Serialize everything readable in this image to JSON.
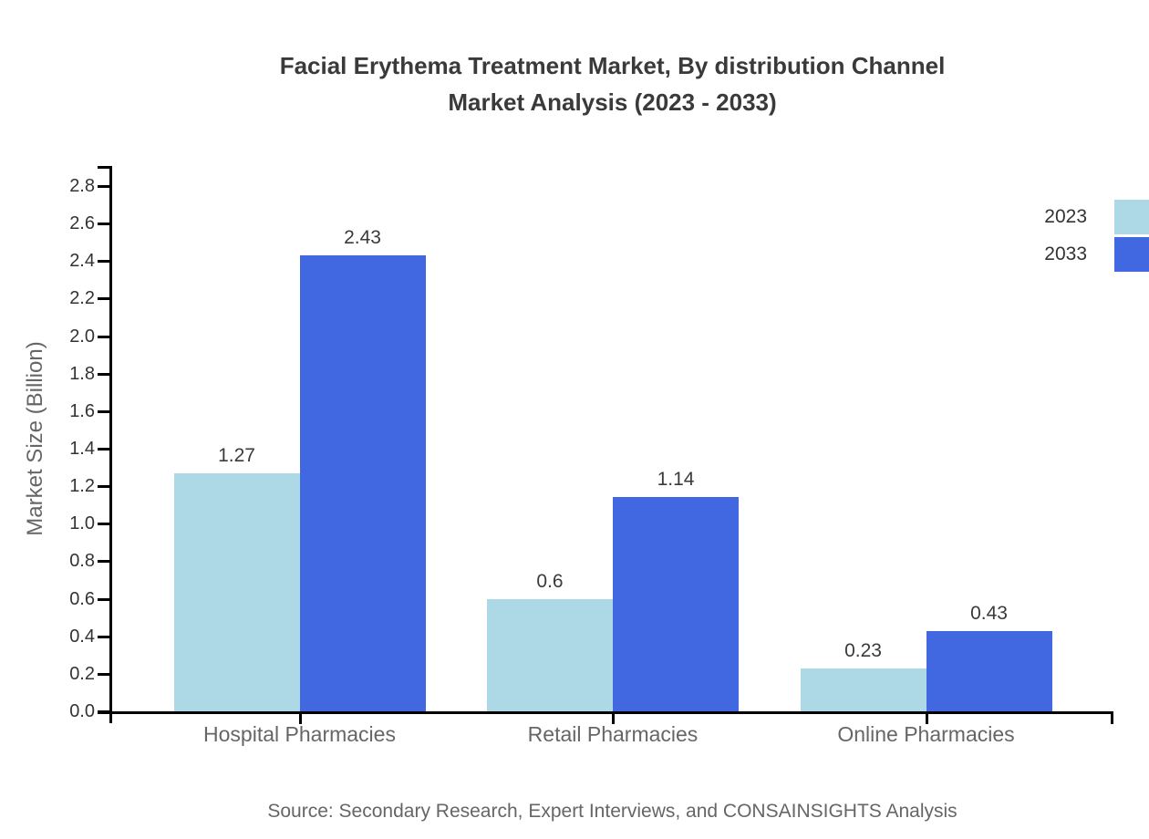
{
  "chart_data": {
    "type": "bar",
    "title": "Facial Erythema Treatment Market, By distribution Channel Market Analysis (2023 - 2033)",
    "title_lines": [
      "Facial Erythema Treatment Market, By distribution Channel",
      "Market Analysis (2023 - 2033)"
    ],
    "categories": [
      "Hospital Pharmacies",
      "Retail Pharmacies",
      "Online Pharmacies"
    ],
    "series": [
      {
        "name": "2023",
        "color": "#ADD8E6",
        "values": [
          1.27,
          0.6,
          0.23
        ],
        "labels": [
          "1.27",
          "0.6",
          "0.23"
        ]
      },
      {
        "name": "2033",
        "color": "#4168E1",
        "values": [
          2.43,
          1.14,
          0.43
        ],
        "labels": [
          "2.43",
          "1.14",
          "0.43"
        ]
      }
    ],
    "xlabel": "",
    "ylabel": "Market Size (Billion)",
    "ylim": [
      0.0,
      2.8
    ],
    "ytick_step": 0.2,
    "yticks": [
      "0.0",
      "0.2",
      "0.4",
      "0.6",
      "0.8",
      "1.0",
      "1.2",
      "1.4",
      "1.6",
      "1.8",
      "2.0",
      "2.2",
      "2.4",
      "2.6",
      "2.8"
    ],
    "grid": false,
    "legend_position": "top-right"
  },
  "source_note": "Source: Secondary Research, Expert Interviews, and CONSAINSIGHTS Analysis"
}
